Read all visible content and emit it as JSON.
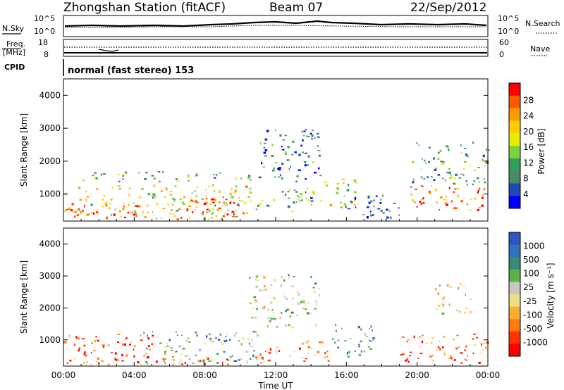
{
  "header": {
    "station": "Zhongshan Station (fitACF)",
    "beam": "Beam 07",
    "date": "22/Sep/2012"
  },
  "side_labels": {
    "nsky": "N.Sky",
    "freq": "Freq.",
    "freq_unit": "[MHz]",
    "cpid": "CPID",
    "nsearch": "N.Search",
    "nave": "Nave"
  },
  "cpid_text": "normal (fast stereo) 153",
  "chart_data": [
    {
      "type": "line",
      "panel": "noise",
      "left_ticks": [
        "10^5",
        "10^0"
      ],
      "right_ticks": [
        "10^5",
        "10^0"
      ],
      "legend": [
        "N.Sky",
        "N.Search"
      ]
    },
    {
      "type": "line",
      "panel": "frequency",
      "left_ticks": [
        "18",
        "8"
      ],
      "right_ticks": [
        "60",
        "0"
      ],
      "legend": [
        "Freq. [MHz]",
        "Nave"
      ]
    },
    {
      "type": "heatmap",
      "panel": "power",
      "ylabel": "Slant Range [km]",
      "yticks": [
        "4000",
        "3000",
        "2000",
        "1000"
      ],
      "ylim": [
        180,
        4500
      ],
      "colorbar_label": "Power [dB]",
      "colorbar_ticks": [
        "28",
        "24",
        "20",
        "16",
        "12",
        "8",
        "4"
      ],
      "colorbar_colors": [
        "#ff0000",
        "#ff5a00",
        "#ff9900",
        "#ffcc00",
        "#e6ee00",
        "#7fd23b",
        "#2fa05a",
        "#4a8a6a",
        "#1f49b5",
        "#0000ff"
      ],
      "xlim_hours": [
        0,
        24
      ],
      "blobs": [
        {
          "t0": 0.0,
          "t1": 10.6,
          "r0": 250,
          "r1": 1300,
          "level": 0.6
        },
        {
          "t0": 0.0,
          "t1": 7.5,
          "r0": 300,
          "r1": 700,
          "level": 0.85
        },
        {
          "t0": 0.5,
          "t1": 10.5,
          "r0": 1400,
          "r1": 1700,
          "level": 0.35
        },
        {
          "t0": 7.0,
          "t1": 10.6,
          "r0": 400,
          "r1": 900,
          "level": 0.9
        },
        {
          "t0": 10.5,
          "t1": 14.5,
          "r0": 500,
          "r1": 1200,
          "level": 0.4
        },
        {
          "t0": 11.0,
          "t1": 14.5,
          "r0": 1400,
          "r1": 3000,
          "level": 0.2
        },
        {
          "t0": 14.5,
          "t1": 16.5,
          "r0": 600,
          "r1": 1500,
          "level": 0.55
        },
        {
          "t0": 16.0,
          "t1": 19.0,
          "r0": 250,
          "r1": 1000,
          "level": 0.15
        },
        {
          "t0": 19.5,
          "t1": 24.0,
          "r0": 500,
          "r1": 1300,
          "level": 0.9
        },
        {
          "t0": 19.5,
          "t1": 24.0,
          "r0": 1300,
          "r1": 2600,
          "level": 0.35
        }
      ]
    },
    {
      "type": "heatmap",
      "panel": "velocity",
      "ylabel": "Slant Range [km]",
      "yticks": [
        "4000",
        "3000",
        "2000",
        "1000"
      ],
      "ylim": [
        180,
        4500
      ],
      "colorbar_label": "Velocity [m s⁻¹]",
      "colorbar_ticks": [
        "1000",
        "500",
        "100",
        "25",
        "-25",
        "-100",
        "-500",
        "-1000"
      ],
      "colorbar_colors": [
        "#2b54c4",
        "#2f72b8",
        "#3a8a74",
        "#5ab24a",
        "#c8c8c0",
        "#eedd88",
        "#ffaa33",
        "#ff7a10",
        "#ff3300",
        "#ff0000"
      ],
      "xlim_hours": [
        0,
        24
      ],
      "blobs": [
        {
          "t0": 0.0,
          "t1": 5.0,
          "r0": 500,
          "r1": 1200,
          "level": 0.1
        },
        {
          "t0": 4.5,
          "t1": 11.0,
          "r0": 300,
          "r1": 1300,
          "level": 0.7
        },
        {
          "t0": 0.0,
          "t1": 11.0,
          "r0": 250,
          "r1": 500,
          "level": 0.25
        },
        {
          "t0": 11.0,
          "t1": 15.0,
          "r0": 300,
          "r1": 1000,
          "level": 0.3
        },
        {
          "t0": 10.5,
          "t1": 14.5,
          "r0": 1400,
          "r1": 3100,
          "level": 0.55
        },
        {
          "t0": 15.0,
          "t1": 17.5,
          "r0": 500,
          "r1": 1500,
          "level": 0.75
        },
        {
          "t0": 19.0,
          "t1": 24.0,
          "r0": 300,
          "r1": 1200,
          "level": 0.25
        },
        {
          "t0": 21.0,
          "t1": 23.0,
          "r0": 1800,
          "r1": 2800,
          "level": 0.45
        }
      ]
    }
  ],
  "time_axis": {
    "ticks": [
      "00:00",
      "04:00",
      "08:00",
      "12:00",
      "16:00",
      "20:00",
      "00:00"
    ],
    "label": "Time UT"
  }
}
